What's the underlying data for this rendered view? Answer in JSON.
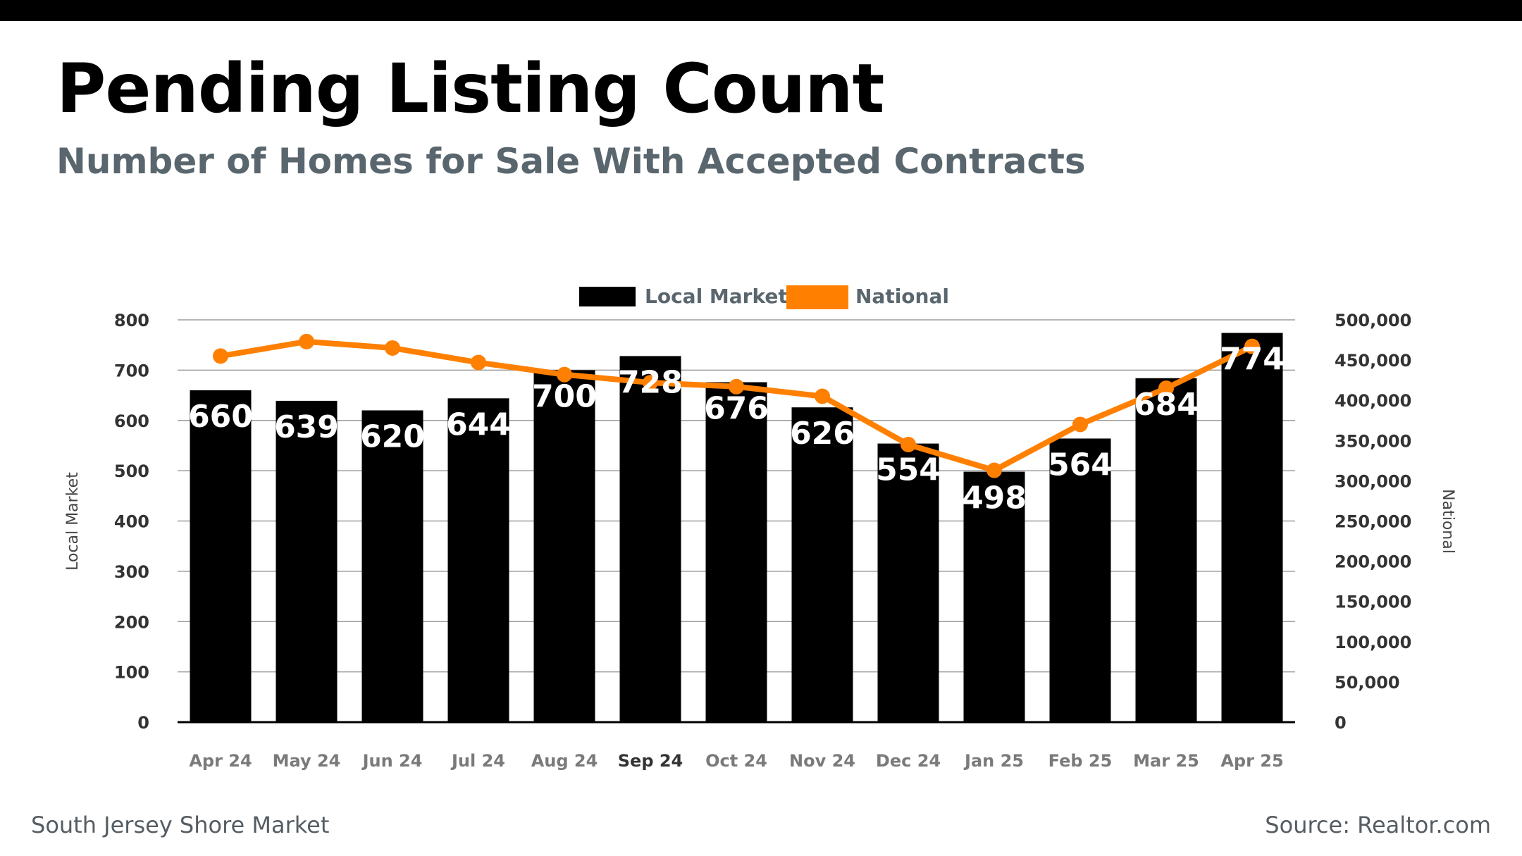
{
  "header": {
    "title": "Pending Listing Count",
    "subtitle": "Number of Homes for Sale With Accepted Contracts"
  },
  "footer": {
    "region": "South Jersey Shore Market",
    "source": "Source: Realtor.com"
  },
  "colors": {
    "bar": "#000000",
    "line": "#ff8000",
    "grid": "#9e9e9e",
    "text_dark": "#333333",
    "text_muted": "#59666e"
  },
  "chart_data": {
    "type": "bar",
    "title": "Pending Listing Count",
    "categories": [
      "Apr 24",
      "May 24",
      "Jun 24",
      "Jul 24",
      "Aug 24",
      "Sep 24",
      "Oct 24",
      "Nov 24",
      "Dec 24",
      "Jan 25",
      "Feb 25",
      "Mar 25",
      "Apr 25"
    ],
    "series": [
      {
        "name": "Local Market",
        "type": "bar",
        "axis": "left",
        "values": [
          660,
          639,
          620,
          644,
          700,
          728,
          676,
          626,
          554,
          498,
          564,
          684,
          774
        ],
        "labels": [
          "660",
          "639",
          "620",
          "644",
          "700",
          "728",
          "676",
          "626",
          "554",
          "498",
          "564",
          "684",
          "774"
        ]
      },
      {
        "name": "National",
        "type": "line",
        "axis": "right",
        "values": [
          455000,
          473000,
          465000,
          447000,
          432000,
          422000,
          417000,
          405000,
          345000,
          313000,
          370000,
          415000,
          467000
        ]
      }
    ],
    "ylabel": "Local Market",
    "y2label": "National",
    "ylim": [
      0,
      800
    ],
    "y2lim": [
      0,
      500000
    ],
    "yticks": [
      "0",
      "100",
      "200",
      "300",
      "400",
      "500",
      "600",
      "700",
      "800"
    ],
    "y2ticks": [
      "0",
      "50,000",
      "100,000",
      "150,000",
      "200,000",
      "250,000",
      "300,000",
      "350,000",
      "400,000",
      "450,000",
      "500,000"
    ],
    "legend": {
      "position": "top-center",
      "items": [
        "Local Market",
        "National"
      ]
    },
    "grid": true
  }
}
